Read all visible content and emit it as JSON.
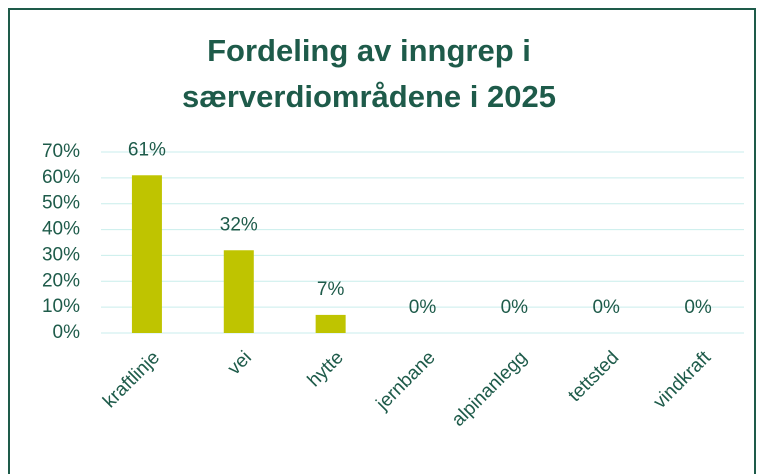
{
  "chart_data": {
    "type": "bar",
    "title": "Fordeling av inngrep i særverdiområdene i 2025",
    "categories": [
      "kraftlinje",
      "vei",
      "hytte",
      "jernbane",
      "alpinanlegg",
      "tettsted",
      "vindkraft"
    ],
    "values": [
      61,
      32,
      7,
      0,
      0,
      0,
      0
    ],
    "value_labels": [
      "61%",
      "32%",
      "7%",
      "0%",
      "0%",
      "0%",
      "0%"
    ],
    "color": "#bfc400",
    "ylim": [
      0,
      70
    ],
    "yticks": [
      {
        "value": 0,
        "label": "0%"
      },
      {
        "value": 10,
        "label": "10%"
      },
      {
        "value": 20,
        "label": "20%"
      },
      {
        "value": 30,
        "label": "30%"
      },
      {
        "value": 40,
        "label": "40%"
      },
      {
        "value": 50,
        "label": "50%"
      },
      {
        "value": 60,
        "label": "60%"
      },
      {
        "value": 70,
        "label": "70%"
      }
    ],
    "grid": true
  }
}
